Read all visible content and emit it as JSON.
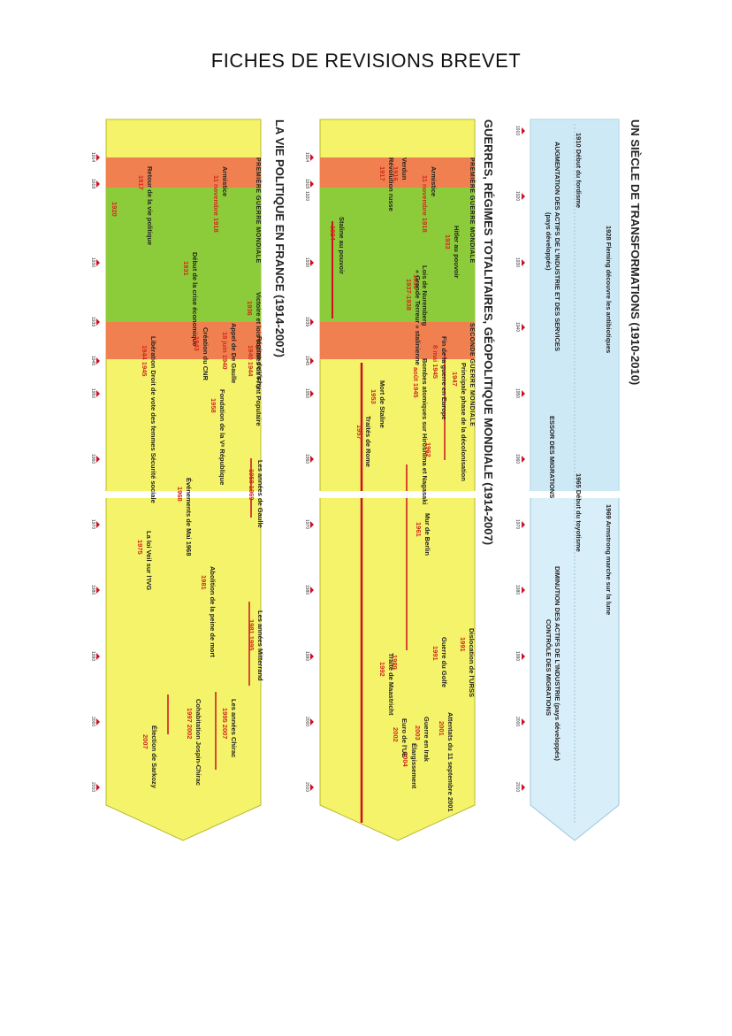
{
  "page_title": "FICHES DE REVISIONS BREVET",
  "sections": [
    {
      "title": "UN SIÈCLE DE TRANSFORMATIONS (1910-2010)",
      "years": [
        "1910",
        "1920",
        "1930",
        "1940",
        "1950",
        "1960",
        "1970",
        "1980",
        "1990",
        "2000",
        "2010"
      ],
      "events": [
        {
          "year": "1910",
          "label": "Début du fordisme"
        },
        {
          "year": "1928",
          "label": "Fleming découvre les antibiotiques"
        },
        {
          "year": "1965",
          "label": "Début du toyotisme"
        },
        {
          "year": "1969",
          "label": "Armstrong marche sur la lune"
        }
      ],
      "trends": [
        "AUGMENTATION DES ACTIFS DE L'INDUSTRIE ET DES SERVICES",
        "(pays développés)",
        "ESSOR DES MIGRATIONS",
        "DIMINUTION DES ACTIFS DE L'INDUSTRIE (pays développés)",
        "CONTRÔLE DES MIGRATIONS"
      ]
    },
    {
      "title": "GUERRES, RÉGIMES TOTALITAIRES, GÉOPOLITIQUE MONDIALE (1914-2007)",
      "years": [
        "1914",
        "1918",
        "1920",
        "1930",
        "1939",
        "1945",
        "1950",
        "1960",
        "1970",
        "1980",
        "1990",
        "2000",
        "2010"
      ],
      "phases": [
        "PREMIÈRE GUERRE MONDIALE",
        "SECONDE GUERRE MONDIALE"
      ],
      "events": [
        {
          "label": "Armistice",
          "year": "11 novembre 1918"
        },
        {
          "label": "Verdun",
          "year": "1916"
        },
        {
          "label": "Révolution russe",
          "year": "1917"
        },
        {
          "label": "Staline au pouvoir",
          "year": "1924"
        },
        {
          "label": "Hitler au pouvoir",
          "year": "1933"
        },
        {
          "label": "Lois de Nuremberg",
          "year": "1935"
        },
        {
          "label": "« Grande Terreur » stalinienne",
          "year": "1937-1938"
        },
        {
          "label": "Fin de la guerre en Europe",
          "year": "8 mai 1945"
        },
        {
          "label": "Bombes atomiques sur Hiroshima et Nagasaki",
          "year": "août 1945"
        },
        {
          "label": "Principale phase de la décolonisation",
          "year": "1947"
        },
        {
          "label": "Mort de Staline",
          "year": "1953"
        },
        {
          "label": "Traités de Rome",
          "year": "1957"
        },
        {
          "label": "1962",
          "year": "1962"
        },
        {
          "label": "Mur de Berlin",
          "year": "1961"
        },
        {
          "label": "1989",
          "year": "1989"
        },
        {
          "label": "Dislocation de l'URSS",
          "year": "1991"
        },
        {
          "label": "Guerre du Golfe",
          "year": "1991"
        },
        {
          "label": "Traité de Maastricht",
          "year": "1992"
        },
        {
          "label": "Attentats du 11 septembre 2001",
          "year": "2001"
        },
        {
          "label": "Guerre en Irak",
          "year": "2003"
        },
        {
          "label": "Euro de l'UE",
          "year": "2002"
        },
        {
          "label": "Élargissement",
          "year": "2004"
        }
      ]
    },
    {
      "title": "LA VIE POLITIQUE EN FRANCE (1914-2007)",
      "years": [
        "1914",
        "1918",
        "1930",
        "1939",
        "1945",
        "1950",
        "1960",
        "1970",
        "1980",
        "1990",
        "2000",
        "2010"
      ],
      "phases": [
        "PREMIÈRE GUERRE MONDIALE"
      ],
      "events": [
        {
          "label": "Armistice",
          "year": "11 novembre 1918"
        },
        {
          "label": "Retour de la vie politique",
          "year": "1917"
        },
        {
          "label": "1920",
          "year": "1920"
        },
        {
          "label": "Début de la crise économique",
          "year": "1931"
        },
        {
          "label": "Victoire et lois sociales du Front Populaire",
          "year": "1936"
        },
        {
          "label": "Appel de De Gaulle",
          "year": "18 juin 1940"
        },
        {
          "label": "Régime de Vichy",
          "year": "1940 1944"
        },
        {
          "label": "Création du CNR",
          "year": "1943"
        },
        {
          "label": "Libération Droit de vote des femmes Sécurité sociale",
          "year": "1944 1945"
        },
        {
          "label": "Fondation de la Vᵉ République",
          "year": "1958"
        },
        {
          "label": "Les années de Gaulle",
          "year": "1958 1969"
        },
        {
          "label": "Événements de Mai 1968",
          "year": "1968"
        },
        {
          "label": "La loi Veil sur l'IVG",
          "year": "1975"
        },
        {
          "label": "Abolition de la peine de mort",
          "year": "1981"
        },
        {
          "label": "Les années Mitterrand",
          "year": "1981 1995"
        },
        {
          "label": "Les années Chirac",
          "year": "1995 2007"
        },
        {
          "label": "Cohabitation Jospin-Chirac",
          "year": "1997 2002"
        },
        {
          "label": "Élection de Sarkozy",
          "year": "2007"
        }
      ]
    }
  ]
}
